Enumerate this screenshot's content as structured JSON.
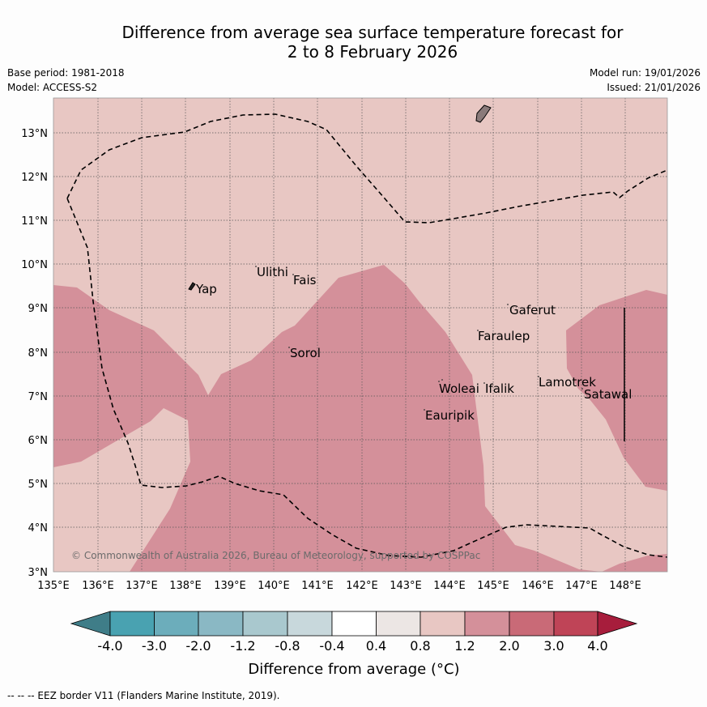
{
  "title": {
    "line1": "Difference from average sea surface temperature forecast for",
    "line2": "2 to 8 February 2026"
  },
  "meta": {
    "base_period": "Base period: 1981-2018",
    "model": "Model: ACCESS-S2",
    "model_run": "Model run: 19/01/2026",
    "issued": "Issued: 21/01/2026"
  },
  "map": {
    "lon_labels": [
      "135°E",
      "136°E",
      "137°E",
      "138°E",
      "139°E",
      "140°E",
      "141°E",
      "142°E",
      "143°E",
      "144°E",
      "145°E",
      "146°E",
      "147°E",
      "148°E"
    ],
    "lat_labels": [
      "3°N",
      "4°N",
      "5°N",
      "6°N",
      "7°N",
      "8°N",
      "9°N",
      "10°N",
      "11°N",
      "12°N",
      "13°N"
    ],
    "places": [
      "Yap",
      "Ulithi",
      "Fais",
      "Sorol",
      "Gaferut",
      "Faraulep",
      "Woleai",
      "Ifalik",
      "Lamotrek",
      "Satawal",
      "Eauripik"
    ],
    "copyright": "© Commonwealth of Australia 2026, Bureau of Meteorology, supported by COSPPac"
  },
  "legend": {
    "ticks": [
      "-4.0",
      "-3.0",
      "-2.0",
      "-1.2",
      "-0.8",
      "-0.4",
      "0.4",
      "0.8",
      "1.2",
      "2.0",
      "3.0",
      "4.0"
    ],
    "colors": [
      "#3f7d88",
      "#49a2b1",
      "#6cadbb",
      "#8ab8c4",
      "#a9c8ce",
      "#c8d8dc",
      "#ffffff",
      "#ece6e4",
      "#e8c7c3",
      "#d4909a",
      "#c96a77",
      "#bf4457",
      "#a71d3c"
    ],
    "label": "Difference from average (°C)"
  },
  "footer": "--  --  -- EEZ border V11 (Flanders Marine Institute, 2019)."
}
